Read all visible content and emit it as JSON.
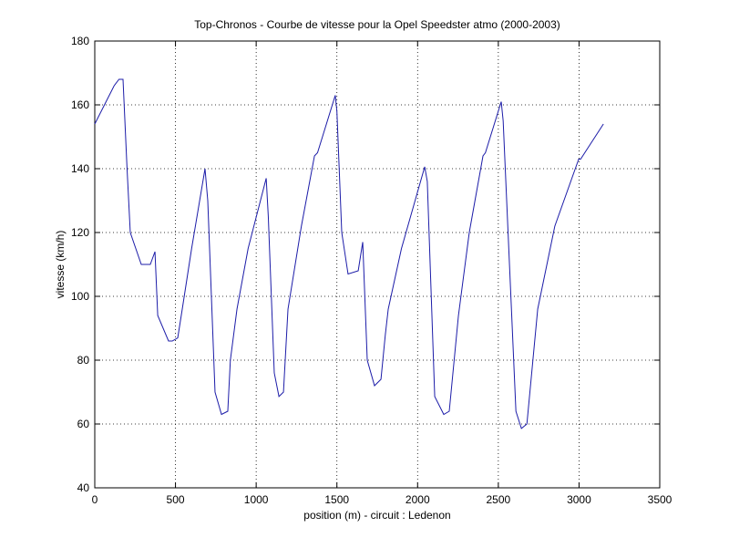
{
  "chart_data": {
    "type": "line",
    "title": "Top-Chronos - Courbe de vitesse pour la Opel Speedster atmo (2000-2003)",
    "x_label": "position (m) - circuit : Ledenon",
    "y_label": "vitesse (km/h)",
    "xlim": [
      0,
      3500
    ],
    "xticks": [
      0,
      500,
      1000,
      1500,
      2000,
      2500,
      3000,
      3500
    ],
    "ylim": [
      40,
      180
    ],
    "yticks": [
      40,
      60,
      80,
      100,
      120,
      140,
      160,
      180
    ],
    "grid": true,
    "series": [
      {
        "color": "#1c1ca8",
        "x": [
          0,
          60,
          120,
          150,
          175,
          200,
          220,
          288,
          344,
          373,
          390,
          457,
          480,
          514,
          542,
          600,
          683,
          700,
          745,
          785,
          824,
          840,
          881,
          950,
          1062,
          1075,
          1112,
          1141,
          1169,
          1197,
          1280,
          1361,
          1380,
          1490,
          1500,
          1530,
          1569,
          1632,
          1660,
          1688,
          1733,
          1773,
          1800,
          1818,
          1900,
          2044,
          2060,
          2106,
          2162,
          2196,
          2253,
          2320,
          2405,
          2420,
          2518,
          2530,
          2609,
          2643,
          2677,
          2744,
          2850,
          2998,
          3010,
          3151
        ],
        "values": [
          154,
          160,
          166,
          168,
          168,
          140,
          120,
          110,
          110,
          114,
          94,
          86,
          86,
          87,
          96,
          115,
          140,
          130,
          70,
          63,
          64,
          80,
          96,
          115,
          137,
          125,
          76,
          68.6,
          70,
          96,
          122,
          144,
          145,
          163,
          158,
          120,
          107,
          108,
          117,
          80,
          72,
          74,
          88,
          96,
          115,
          140.6,
          136,
          68.6,
          63,
          64,
          94,
          120,
          144,
          145,
          161,
          155,
          64,
          58.6,
          60,
          96,
          122,
          143,
          143,
          154
        ]
      }
    ]
  }
}
